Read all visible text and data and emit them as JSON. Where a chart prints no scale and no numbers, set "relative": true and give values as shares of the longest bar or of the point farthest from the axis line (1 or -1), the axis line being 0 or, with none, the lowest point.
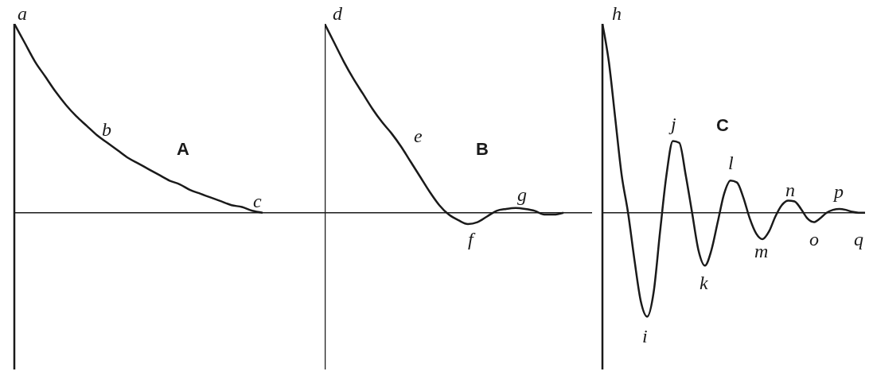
{
  "chart_data": [
    {
      "type": "line",
      "title": "A",
      "relative": true,
      "color": "#1a1a1a",
      "annotations": [
        "a",
        "b",
        "c"
      ],
      "categories": [
        null,
        null,
        null,
        null,
        null,
        null,
        null,
        null,
        null,
        null,
        null,
        null,
        null,
        null,
        null,
        null,
        null,
        null,
        null,
        null,
        null,
        null,
        null,
        null,
        null,
        null,
        null,
        null,
        null,
        null,
        null
      ],
      "values": [
        1,
        0.9,
        0.8,
        0.72,
        0.64,
        0.57,
        0.51,
        0.46,
        0.41,
        0.37,
        0.33,
        0.29,
        0.26,
        0.23,
        0.2,
        0.17,
        0.15,
        0.12,
        0.1,
        0.08,
        0.06,
        0.04,
        0.03,
        0.01,
        0,
        null,
        null,
        null,
        null,
        null,
        null
      ]
    },
    {
      "type": "line",
      "title": "B",
      "relative": true,
      "color": "#1a1a1a",
      "annotations": [
        "d",
        "e",
        "f",
        "g"
      ],
      "categories": [
        null,
        null,
        null,
        null,
        null,
        null,
        null,
        null,
        null,
        null,
        null,
        null,
        null,
        null,
        null,
        null,
        null,
        null,
        null,
        null,
        null,
        null,
        null,
        null,
        null,
        null,
        null,
        null,
        null
      ],
      "values": [
        1,
        0.9,
        0.8,
        0.71,
        0.63,
        0.55,
        0.48,
        0.42,
        0.35,
        0.27,
        0.19,
        0.11,
        0.04,
        -0.01,
        -0.04,
        -0.06,
        -0.05,
        -0.02,
        0.01,
        0.02,
        0.025,
        0.02,
        0.01,
        -0.01,
        -0.01,
        0,
        null,
        null,
        null
      ]
    },
    {
      "type": "line",
      "title": "C",
      "relative": true,
      "color": "#1a1a1a",
      "annotations": [
        "h",
        "i",
        "j",
        "k",
        "l",
        "m",
        "n",
        "o",
        "p",
        "q"
      ],
      "categories": [
        null,
        null,
        null,
        null,
        null,
        null,
        null,
        null,
        null,
        null,
        null,
        null,
        null,
        null,
        null,
        null,
        null,
        null,
        null,
        null,
        null,
        null,
        null,
        null,
        null,
        null,
        null,
        null,
        null,
        null,
        null,
        null,
        null,
        null,
        null,
        null,
        null,
        null,
        null,
        null,
        null,
        null
      ],
      "values": [
        1,
        0.8,
        0.5,
        0.2,
        0,
        -0.25,
        -0.47,
        -0.55,
        -0.42,
        -0.1,
        0.2,
        0.38,
        0.37,
        0.2,
        0,
        -0.2,
        -0.28,
        -0.2,
        -0.05,
        0.1,
        0.17,
        0.16,
        0.08,
        -0.03,
        -0.11,
        -0.14,
        -0.1,
        -0.02,
        0.04,
        0.064,
        0.06,
        0.02,
        -0.03,
        -0.05,
        -0.03,
        0,
        0.015,
        0.02,
        0.015,
        0.005,
        0,
        0
      ]
    }
  ]
}
